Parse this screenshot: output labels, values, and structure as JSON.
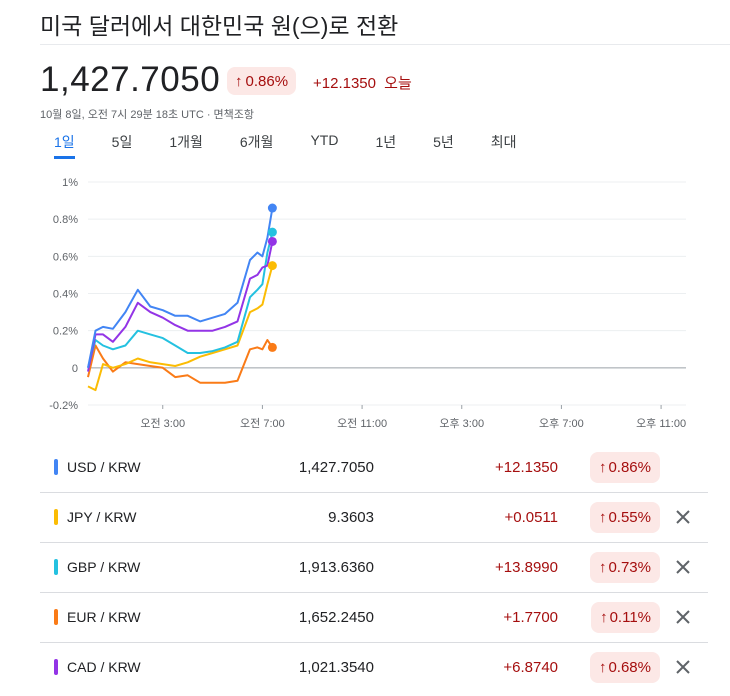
{
  "header": {
    "title": "미국 달러에서 대한민국 원(으)로 전환",
    "price": "1,427.7050",
    "pct_change": "0.86%",
    "abs_change": "+12.1350",
    "today_label": "오늘",
    "timestamp": "10월 8일, 오전 7시 29분 18초 UTC · 면책조항"
  },
  "tabs": [
    "1일",
    "5일",
    "1개월",
    "6개월",
    "YTD",
    "1년",
    "5년",
    "최대"
  ],
  "active_tab": "1일",
  "colors": {
    "USD": "#4285f4",
    "JPY": "#fbbc04",
    "GBP": "#24c1e0",
    "EUR": "#fa7b17",
    "CAD": "#9334e6",
    "negative_bg": "#fce8e6",
    "negative_text": "#a50e0e"
  },
  "chart_data": {
    "type": "line",
    "ylim": [
      -0.2,
      1.0
    ],
    "y_ticks": [
      "1%",
      "0.8%",
      "0.6%",
      "0.4%",
      "0.2%",
      "0",
      "-0.2%"
    ],
    "x_ticks": [
      "오전 3:00",
      "오전 7:00",
      "오전 11:00",
      "오후 3:00",
      "오후 7:00",
      "오후 11:00"
    ],
    "x_range_hours": [
      0,
      24
    ],
    "series": [
      {
        "name": "USD / KRW",
        "color": "#4285f4",
        "x": [
          0,
          0.3,
          0.6,
          1.0,
          1.5,
          2.0,
          2.5,
          3.0,
          3.5,
          4.0,
          4.5,
          5.0,
          5.5,
          6.0,
          6.5,
          6.8,
          7.0,
          7.2,
          7.4
        ],
        "y": [
          0.0,
          0.2,
          0.22,
          0.21,
          0.3,
          0.42,
          0.33,
          0.31,
          0.28,
          0.28,
          0.25,
          0.27,
          0.29,
          0.35,
          0.58,
          0.62,
          0.6,
          0.7,
          0.86
        ]
      },
      {
        "name": "CAD / KRW",
        "color": "#9334e6",
        "x": [
          0,
          0.3,
          0.6,
          1.0,
          1.5,
          2.0,
          2.5,
          3.0,
          3.5,
          4.0,
          4.5,
          5.0,
          5.5,
          6.0,
          6.5,
          6.8,
          7.0,
          7.2,
          7.4
        ],
        "y": [
          -0.02,
          0.18,
          0.18,
          0.14,
          0.22,
          0.35,
          0.3,
          0.27,
          0.23,
          0.2,
          0.2,
          0.2,
          0.22,
          0.25,
          0.48,
          0.5,
          0.54,
          0.55,
          0.68
        ]
      },
      {
        "name": "GBP / KRW",
        "color": "#24c1e0",
        "x": [
          0,
          0.3,
          0.6,
          1.0,
          1.5,
          2.0,
          2.5,
          3.0,
          3.5,
          4.0,
          4.5,
          5.0,
          5.5,
          6.0,
          6.5,
          6.8,
          7.0,
          7.2,
          7.4
        ],
        "y": [
          0.0,
          0.15,
          0.12,
          0.1,
          0.12,
          0.2,
          0.18,
          0.16,
          0.12,
          0.08,
          0.08,
          0.09,
          0.11,
          0.14,
          0.38,
          0.42,
          0.45,
          0.62,
          0.73
        ]
      },
      {
        "name": "JPY / KRW",
        "color": "#fbbc04",
        "x": [
          0,
          0.3,
          0.6,
          1.0,
          1.5,
          2.0,
          2.5,
          3.0,
          3.5,
          4.0,
          4.5,
          5.0,
          5.5,
          6.0,
          6.5,
          6.8,
          7.0,
          7.2,
          7.4
        ],
        "y": [
          -0.1,
          -0.12,
          0.02,
          0.0,
          0.02,
          0.05,
          0.03,
          0.02,
          0.01,
          0.03,
          0.06,
          0.08,
          0.1,
          0.12,
          0.3,
          0.32,
          0.34,
          0.45,
          0.55
        ]
      },
      {
        "name": "EUR / KRW",
        "color": "#fa7b17",
        "x": [
          0,
          0.3,
          0.6,
          1.0,
          1.5,
          2.0,
          2.5,
          3.0,
          3.5,
          4.0,
          4.5,
          5.0,
          5.5,
          6.0,
          6.5,
          6.8,
          7.0,
          7.2,
          7.4
        ],
        "y": [
          -0.05,
          0.12,
          0.05,
          -0.02,
          0.03,
          0.02,
          0.01,
          0.0,
          -0.05,
          -0.04,
          -0.08,
          -0.08,
          -0.08,
          -0.07,
          0.1,
          0.11,
          0.1,
          0.15,
          0.11
        ]
      }
    ]
  },
  "rows": [
    {
      "pair": "USD / KRW",
      "rate": "1,427.7050",
      "change": "+12.1350",
      "pct": "0.86%",
      "color": "#4285f4",
      "removable": false
    },
    {
      "pair": "JPY / KRW",
      "rate": "9.3603",
      "change": "+0.0511",
      "pct": "0.55%",
      "color": "#fbbc04",
      "removable": true
    },
    {
      "pair": "GBP / KRW",
      "rate": "1,913.6360",
      "change": "+13.8990",
      "pct": "0.73%",
      "color": "#24c1e0",
      "removable": true
    },
    {
      "pair": "EUR / KRW",
      "rate": "1,652.2450",
      "change": "+1.7700",
      "pct": "0.11%",
      "color": "#fa7b17",
      "removable": true
    },
    {
      "pair": "CAD / KRW",
      "rate": "1,021.3540",
      "change": "+6.8740",
      "pct": "0.68%",
      "color": "#9334e6",
      "removable": true
    }
  ]
}
